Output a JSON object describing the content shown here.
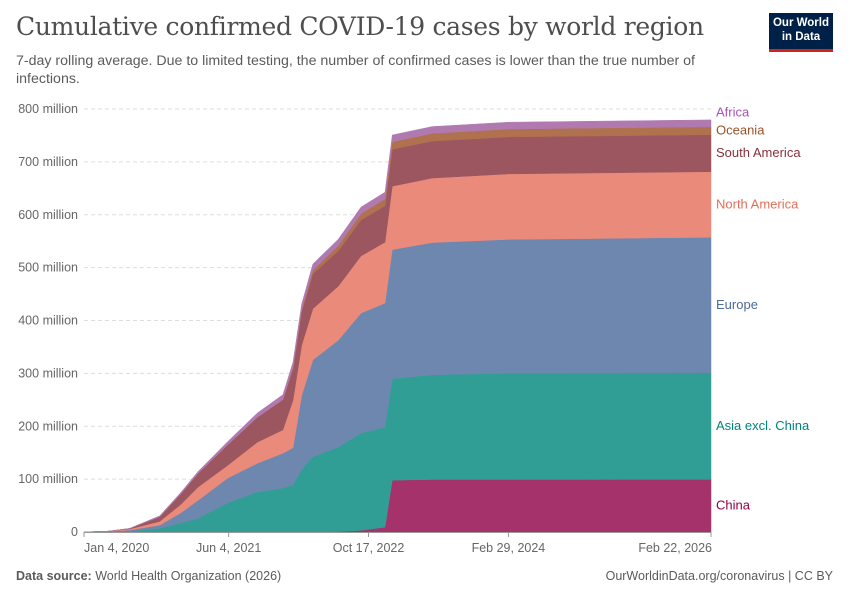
{
  "header": {
    "title": "Cumulative confirmed COVID-19 cases by world region",
    "subtitle": "7-day rolling average. Due to limited testing, the number of confirmed cases is lower than the true number of infections.",
    "logo_text": "Our World in Data"
  },
  "footer": {
    "source_label": "Data source:",
    "source_value": "World Health Organization (2026)",
    "link": "OurWorldinData.org/coronavirus | CC BY"
  },
  "chart_data": {
    "type": "area",
    "stacked": true,
    "title": "Cumulative confirmed COVID-19 cases by world region",
    "xlabel": "",
    "ylabel": "",
    "ylim": [
      0,
      800
    ],
    "y_unit": "million",
    "y_ticks": [
      "0",
      "100 million",
      "200 million",
      "300 million",
      "400 million",
      "500 million",
      "600 million",
      "700 million",
      "800 million"
    ],
    "x_ticks": [
      "Jan 4, 2020",
      "Jun 4, 2021",
      "Oct 17, 2022",
      "Feb 29, 2024",
      "Feb 22, 2026"
    ],
    "x_tick_dates": [
      "2020-01-04",
      "2021-06-04",
      "2022-10-17",
      "2024-02-29",
      "2026-02-22"
    ],
    "xlim": [
      "2020-01-04",
      "2026-02-22"
    ],
    "grid": "horizontal dashed",
    "legend": "right, inline labels",
    "x": [
      "2020-01-04",
      "2020-04-01",
      "2020-06-15",
      "2020-10-01",
      "2020-12-15",
      "2021-02-15",
      "2021-06-01",
      "2021-09-15",
      "2021-12-15",
      "2022-01-20",
      "2022-02-20",
      "2022-04-01",
      "2022-07-01",
      "2022-09-20",
      "2022-12-15",
      "2023-01-10",
      "2023-06-01",
      "2024-03-01",
      "2026-02-22"
    ],
    "series": [
      {
        "name": "China",
        "color": "#a5326a",
        "label_color": "#970046",
        "values": [
          0,
          0.08,
          0.08,
          0.09,
          0.1,
          0.1,
          0.1,
          0.1,
          0.1,
          0.2,
          0.3,
          0.4,
          0.8,
          3,
          9,
          98,
          99.3,
          99.3,
          99.4
        ]
      },
      {
        "name": "Asia excl. China",
        "color": "#319e96",
        "label_color": "#00847e",
        "values": [
          0,
          0.3,
          1.5,
          7,
          17,
          26,
          55,
          76,
          83,
          89,
          118,
          142,
          160,
          184,
          189,
          192,
          198,
          201,
          202
        ]
      },
      {
        "name": "Europe",
        "color": "#6e87ae",
        "label_color": "#4c6a9c",
        "values": [
          0,
          0.8,
          2,
          6,
          19,
          34,
          47,
          54,
          66,
          70,
          140,
          183,
          202,
          227,
          235,
          244,
          250,
          253,
          256
        ]
      },
      {
        "name": "North America",
        "color": "#ea8a7b",
        "label_color": "#e56e5a",
        "values": [
          0,
          0.3,
          2,
          7,
          16,
          25,
          24,
          40,
          44,
          90,
          95,
          97,
          102,
          108,
          115,
          120,
          122,
          124,
          124
        ]
      },
      {
        "name": "South America",
        "color": "#9c5660",
        "label_color": "#883039",
        "values": [
          0,
          0.05,
          1,
          9,
          20,
          26,
          39,
          47,
          57,
          60,
          64,
          66,
          67,
          68,
          69,
          70,
          70,
          70,
          70
        ]
      },
      {
        "name": "Oceania",
        "color": "#b0714f",
        "label_color": "#9a5129",
        "values": [
          0,
          0.01,
          0.01,
          0.03,
          0.05,
          0.05,
          0.1,
          0.2,
          0.5,
          1.5,
          3,
          7,
          10,
          12,
          13,
          14,
          14.5,
          14.8,
          15
        ]
      },
      {
        "name": "Africa",
        "color": "#b07ab0",
        "label_color": "#a652ba",
        "values": [
          0,
          0.01,
          0.3,
          1.6,
          2.5,
          3.5,
          6,
          8,
          9,
          10.5,
          11,
          11.5,
          12,
          12.5,
          12.7,
          12.8,
          12.9,
          13,
          13
        ]
      }
    ]
  }
}
